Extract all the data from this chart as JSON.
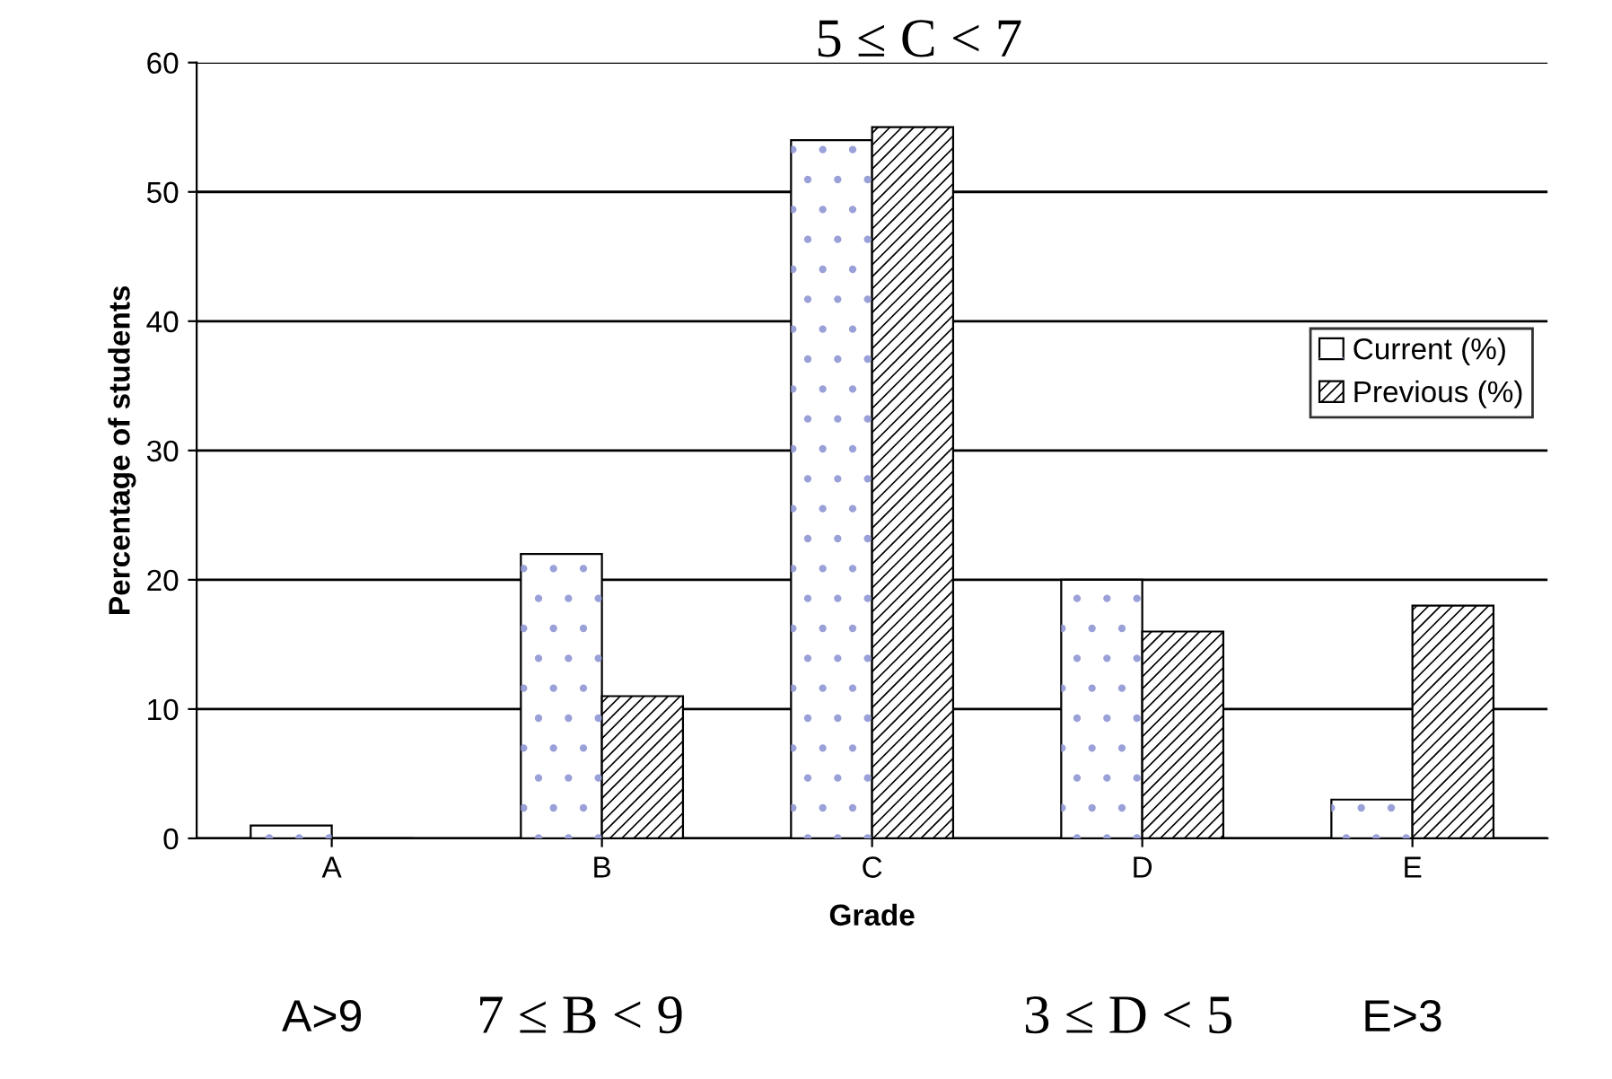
{
  "chart_data": {
    "type": "bar",
    "xlabel": "Grade",
    "ylabel": "Percentage of students",
    "categories": [
      "A",
      "B",
      "C",
      "D",
      "E"
    ],
    "series": [
      {
        "name": "Current (%)",
        "color": "#ffffff",
        "values": [
          1,
          22,
          54,
          20,
          3
        ]
      },
      {
        "name": "Previous (%)",
        "color": "#ffffff",
        "values": [
          0,
          11,
          55,
          16,
          18
        ]
      }
    ],
    "ylim": [
      0,
      60
    ],
    "yticks": [
      0,
      10,
      20,
      30,
      40,
      50,
      60
    ],
    "grid": "y",
    "legend": "right",
    "annotations": [
      "5 ≤ C < 7",
      "A>9",
      "7 ≤ B < 9",
      "3 ≤ D < 5",
      "E>3"
    ]
  }
}
